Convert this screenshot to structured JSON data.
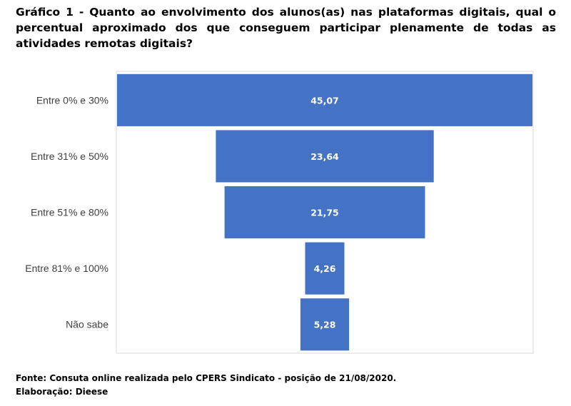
{
  "title": "Gráfico 1 - Quanto ao envolvimento dos alunos(as) nas plataformas digitais, qual o percentual aproximado dos que conseguem participar plenamente de todas as atividades remotas digitais?",
  "colors": {
    "bar": "#4472c4",
    "axis": "#d9d9d9"
  },
  "chart_data": {
    "type": "bar",
    "orientation": "horizontal-centered",
    "categories": [
      "Entre 0% e 30%",
      "Entre 31% e 50%",
      "Entre 51% e 80%",
      "Entre 81% e 100%",
      "Não sabe"
    ],
    "values": [
      45.07,
      23.64,
      21.75,
      4.26,
      5.28
    ],
    "value_labels": [
      "45,07",
      "23,64",
      "21,75",
      "4,26",
      "5,28"
    ]
  },
  "footer": {
    "source": "Fonte: Consuta online realizada pelo CPERS Sindicato - posição de 21/08/2020.",
    "credit": "Elaboração: Dieese"
  }
}
